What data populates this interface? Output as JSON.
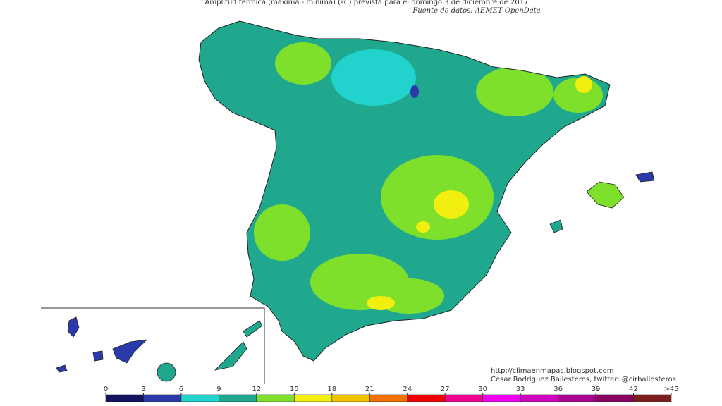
{
  "header": {
    "title": "Amplitud térmica (máxima - mínima) (ºC) prevista para el domingo 3 de diciembre de 2017",
    "source": "Fuente de datos: AEMET OpenData"
  },
  "credits": {
    "url": "http://climaenmapas.blogspot.com",
    "author": "César Rodríguez Ballesteros, twitter: @cirballesteros"
  },
  "legend": {
    "lim": [
      0,
      45
    ],
    "ticks": [
      0,
      3,
      6,
      9,
      12,
      15,
      18,
      21,
      24,
      27,
      30,
      33,
      36,
      39,
      42,
      {
        "value": 45,
        "label": ">45"
      }
    ],
    "colors": [
      "#12125e",
      "#2a3aa8",
      "#22d2cc",
      "#1fa88e",
      "#7ee02a",
      "#f2ee10",
      "#f2c400",
      "#f07000",
      "#f00000",
      "#f0008c",
      "#f000f0",
      "#d000c0",
      "#aa0090",
      "#880060",
      "#7a1e1e"
    ]
  }
}
